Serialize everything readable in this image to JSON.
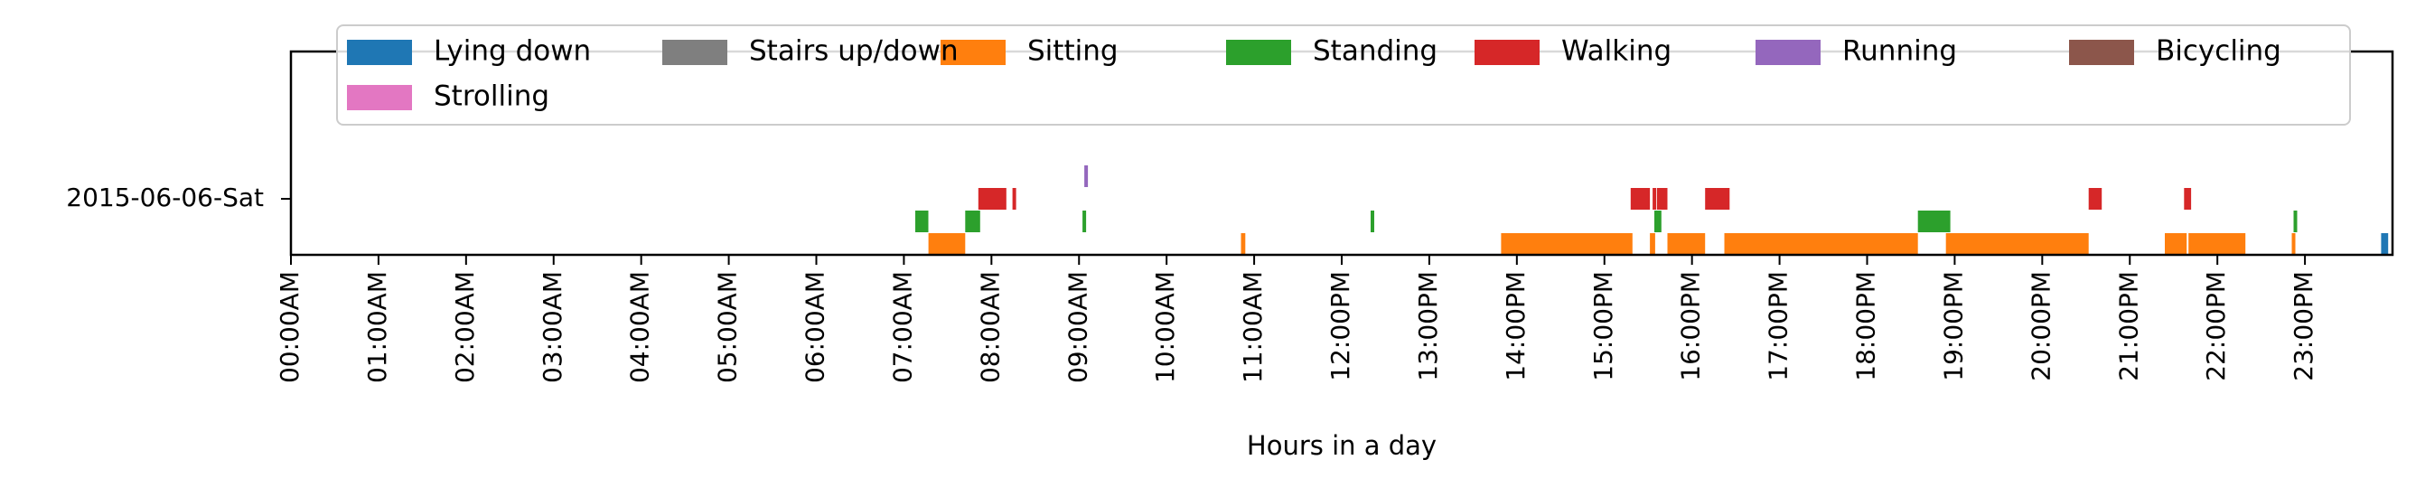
{
  "chart_data": {
    "type": "timeline",
    "xlabel": "Hours in a day",
    "xlim": [
      0,
      24
    ],
    "row_label": "2015-06-06-Sat",
    "x_ticks": [
      {
        "value": 0,
        "label": "00:00AM"
      },
      {
        "value": 1,
        "label": "01:00AM"
      },
      {
        "value": 2,
        "label": "02:00AM"
      },
      {
        "value": 3,
        "label": "03:00AM"
      },
      {
        "value": 4,
        "label": "04:00AM"
      },
      {
        "value": 5,
        "label": "05:00AM"
      },
      {
        "value": 6,
        "label": "06:00AM"
      },
      {
        "value": 7,
        "label": "07:00AM"
      },
      {
        "value": 8,
        "label": "08:00AM"
      },
      {
        "value": 9,
        "label": "09:00AM"
      },
      {
        "value": 10,
        "label": "10:00AM"
      },
      {
        "value": 11,
        "label": "11:00AM"
      },
      {
        "value": 12,
        "label": "12:00PM"
      },
      {
        "value": 13,
        "label": "13:00PM"
      },
      {
        "value": 14,
        "label": "14:00PM"
      },
      {
        "value": 15,
        "label": "15:00PM"
      },
      {
        "value": 16,
        "label": "16:00PM"
      },
      {
        "value": 17,
        "label": "17:00PM"
      },
      {
        "value": 18,
        "label": "18:00PM"
      },
      {
        "value": 19,
        "label": "19:00PM"
      },
      {
        "value": 20,
        "label": "20:00PM"
      },
      {
        "value": 21,
        "label": "21:00PM"
      },
      {
        "value": 22,
        "label": "22:00PM"
      },
      {
        "value": 23,
        "label": "23:00PM"
      }
    ],
    "legend_position": "top",
    "series": [
      {
        "name": "Lying down",
        "color": "#1f77b4",
        "lane": 0,
        "intervals": [
          [
            23.87,
            23.95
          ]
        ]
      },
      {
        "name": "Sitting",
        "color": "#ff7f0e",
        "lane": 0,
        "intervals": [
          [
            7.28,
            7.7
          ],
          [
            10.85,
            10.9
          ],
          [
            13.82,
            15.32
          ],
          [
            15.52,
            15.58
          ],
          [
            15.72,
            16.15
          ],
          [
            16.37,
            18.58
          ],
          [
            18.9,
            20.53
          ],
          [
            21.4,
            21.65
          ],
          [
            21.67,
            22.32
          ],
          [
            22.85,
            22.88
          ]
        ]
      },
      {
        "name": "Standing",
        "color": "#2ca02c",
        "lane": 1,
        "intervals": [
          [
            7.13,
            7.28
          ],
          [
            7.7,
            7.87
          ],
          [
            9.04,
            9.07
          ],
          [
            12.33,
            12.37
          ],
          [
            15.57,
            15.65
          ],
          [
            18.58,
            18.95
          ],
          [
            22.87,
            22.9
          ]
        ]
      },
      {
        "name": "Walking",
        "color": "#d62728",
        "lane": 2,
        "intervals": [
          [
            7.85,
            8.17
          ],
          [
            8.24,
            8.28
          ],
          [
            15.3,
            15.52
          ],
          [
            15.55,
            15.58
          ],
          [
            15.6,
            15.72
          ],
          [
            16.15,
            16.43
          ],
          [
            20.53,
            20.68
          ],
          [
            21.62,
            21.7
          ]
        ]
      },
      {
        "name": "Running",
        "color": "#9467bd",
        "lane": 3,
        "intervals": [
          [
            9.06,
            9.09
          ]
        ]
      },
      {
        "name": "Bicycling",
        "color": "#8c564b",
        "lane": 4,
        "intervals": []
      },
      {
        "name": "Strolling",
        "color": "#e377c2",
        "lane": 5,
        "intervals": []
      },
      {
        "name": "Stairs up/down",
        "color": "#7f7f7f",
        "lane": 6,
        "intervals": []
      }
    ]
  }
}
